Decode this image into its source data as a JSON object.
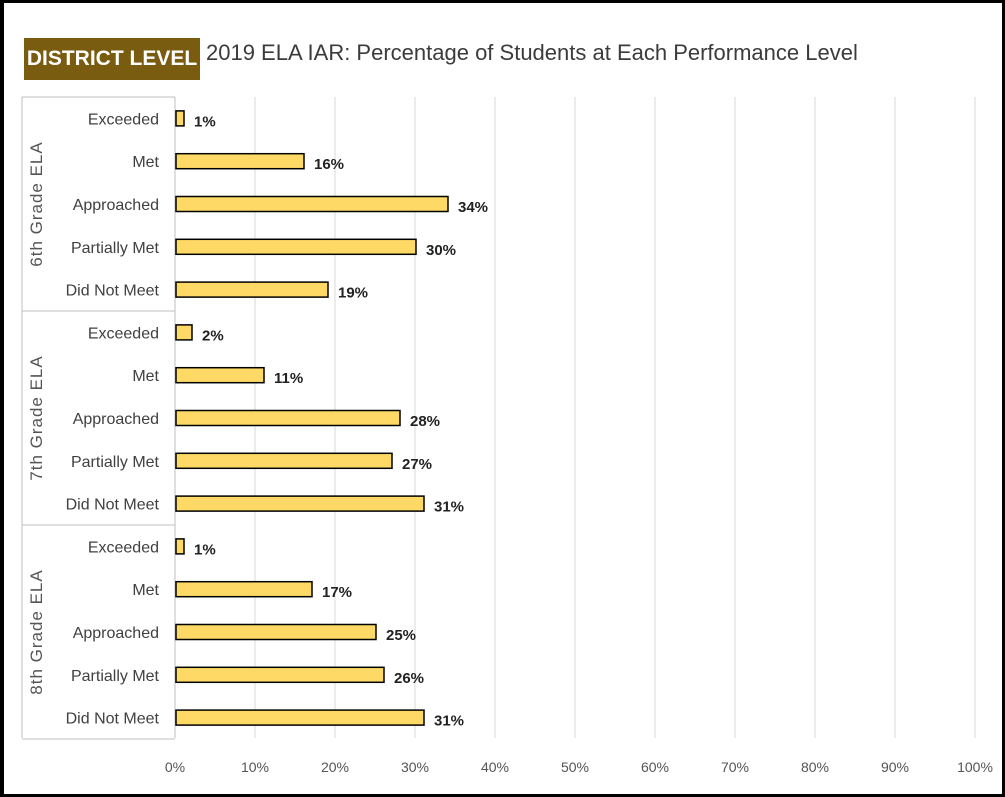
{
  "header": {
    "badge": "DISTRICT LEVEL",
    "title": "2019 ELA IAR:  Percentage of Students at Each Performance Level"
  },
  "colors": {
    "bar_fill": "#ffd966",
    "bar_stroke": "#000000",
    "badge_bg": "#7a5c10",
    "grid": "#d9d9d9"
  },
  "chart_data": {
    "type": "bar",
    "orientation": "horizontal",
    "title": "2019 ELA IAR:  Percentage of Students at Each Performance Level",
    "groups": [
      {
        "name": "6th Grade ELA",
        "categories": [
          "Exceeded",
          "Met",
          "Approached",
          "Partially Met",
          "Did Not Meet"
        ],
        "values": [
          1,
          16,
          34,
          30,
          19
        ],
        "labels": [
          "1%",
          "16%",
          "34%",
          "30%",
          "19%"
        ]
      },
      {
        "name": "7th Grade ELA",
        "categories": [
          "Exceeded",
          "Met",
          "Approached",
          "Partially Met",
          "Did Not Meet"
        ],
        "values": [
          2,
          11,
          28,
          27,
          31
        ],
        "labels": [
          "2%",
          "11%",
          "28%",
          "27%",
          "31%"
        ]
      },
      {
        "name": "8th Grade ELA",
        "categories": [
          "Exceeded",
          "Met",
          "Approached",
          "Partially Met",
          "Did Not Meet"
        ],
        "values": [
          1,
          17,
          25,
          26,
          31
        ],
        "labels": [
          "1%",
          "17%",
          "25%",
          "26%",
          "31%"
        ]
      }
    ],
    "xlim": [
      0,
      100
    ],
    "xticks": [
      "0%",
      "10%",
      "20%",
      "30%",
      "40%",
      "50%",
      "60%",
      "70%",
      "80%",
      "90%",
      "100%"
    ],
    "grid": true,
    "legend": "none"
  }
}
